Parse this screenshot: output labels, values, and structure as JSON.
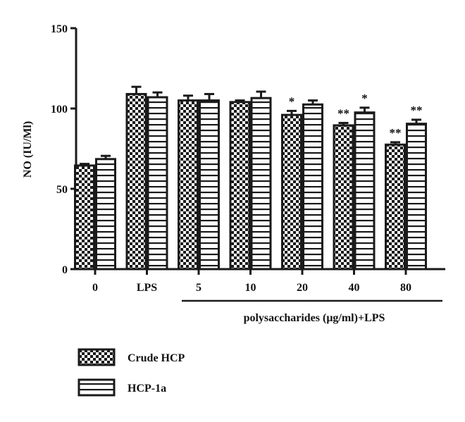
{
  "chart_data": {
    "type": "bar",
    "categories": [
      "0",
      "LPS",
      "5",
      "10",
      "20",
      "40",
      "80"
    ],
    "ylabel": "NO (IU/Ml)",
    "xgroup_label": "polysaccharides (μg/ml)+LPS",
    "ylim": [
      0,
      150
    ],
    "yticks": [
      0,
      50,
      100,
      150
    ],
    "series": [
      {
        "name": "Crude HCP",
        "pattern": "checker",
        "values": [
          64.5,
          109,
          105,
          104,
          96,
          89.5,
          77.5
        ],
        "errors": [
          1.0,
          4.5,
          3.0,
          1.0,
          2.5,
          1.5,
          1.5
        ],
        "significance": [
          "",
          "",
          "",
          "",
          "*",
          "**",
          "**"
        ]
      },
      {
        "name": "HCP-1a",
        "pattern": "horizontal-lines",
        "values": [
          68.5,
          107,
          105,
          106.5,
          102.5,
          97.5,
          90.5
        ],
        "errors": [
          2.0,
          3.0,
          4.0,
          4.0,
          2.5,
          3.0,
          2.5
        ],
        "significance": [
          "",
          "",
          "",
          "",
          "",
          "*",
          "**"
        ]
      }
    ],
    "colors": {
      "ink": "#1a1a1a",
      "background": "#ffffff"
    }
  }
}
